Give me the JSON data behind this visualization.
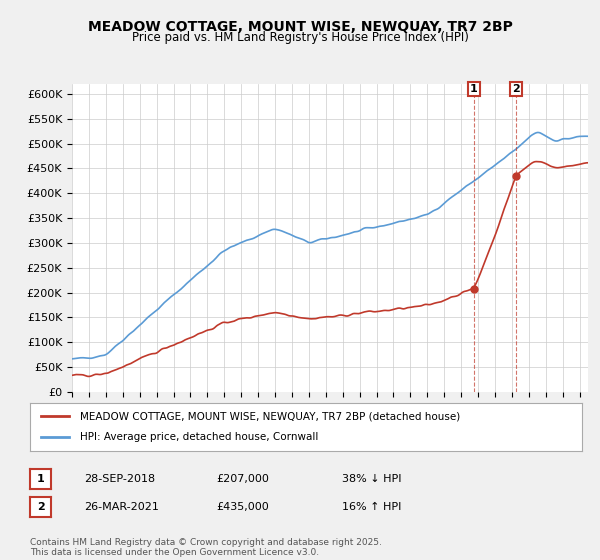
{
  "title": "MEADOW COTTAGE, MOUNT WISE, NEWQUAY, TR7 2BP",
  "subtitle": "Price paid vs. HM Land Registry's House Price Index (HPI)",
  "ylabel_ticks": [
    "£0",
    "£50K",
    "£100K",
    "£150K",
    "£200K",
    "£250K",
    "£300K",
    "£350K",
    "£400K",
    "£450K",
    "£500K",
    "£550K",
    "£600K"
  ],
  "ytick_values": [
    0,
    50000,
    100000,
    150000,
    200000,
    250000,
    300000,
    350000,
    400000,
    450000,
    500000,
    550000,
    600000
  ],
  "xlim_start": 1995.0,
  "xlim_end": 2025.5,
  "ylim_min": 0,
  "ylim_max": 620000,
  "transaction1_date": 2018.75,
  "transaction1_price": 207000,
  "transaction1_label": "1",
  "transaction2_date": 2021.23,
  "transaction2_price": 435000,
  "transaction2_label": "2",
  "hpi_color": "#5b9bd5",
  "price_color": "#c0392b",
  "legend_entry1": "MEADOW COTTAGE, MOUNT WISE, NEWQUAY, TR7 2BP (detached house)",
  "legend_entry2": "HPI: Average price, detached house, Cornwall",
  "table_row1": [
    "1",
    "28-SEP-2018",
    "£207,000",
    "38% ↓ HPI"
  ],
  "table_row2": [
    "2",
    "26-MAR-2021",
    "£435,000",
    "16% ↑ HPI"
  ],
  "footnote": "Contains HM Land Registry data © Crown copyright and database right 2025.\nThis data is licensed under the Open Government Licence v3.0.",
  "background_color": "#f0f0f0",
  "plot_bg_color": "#ffffff"
}
